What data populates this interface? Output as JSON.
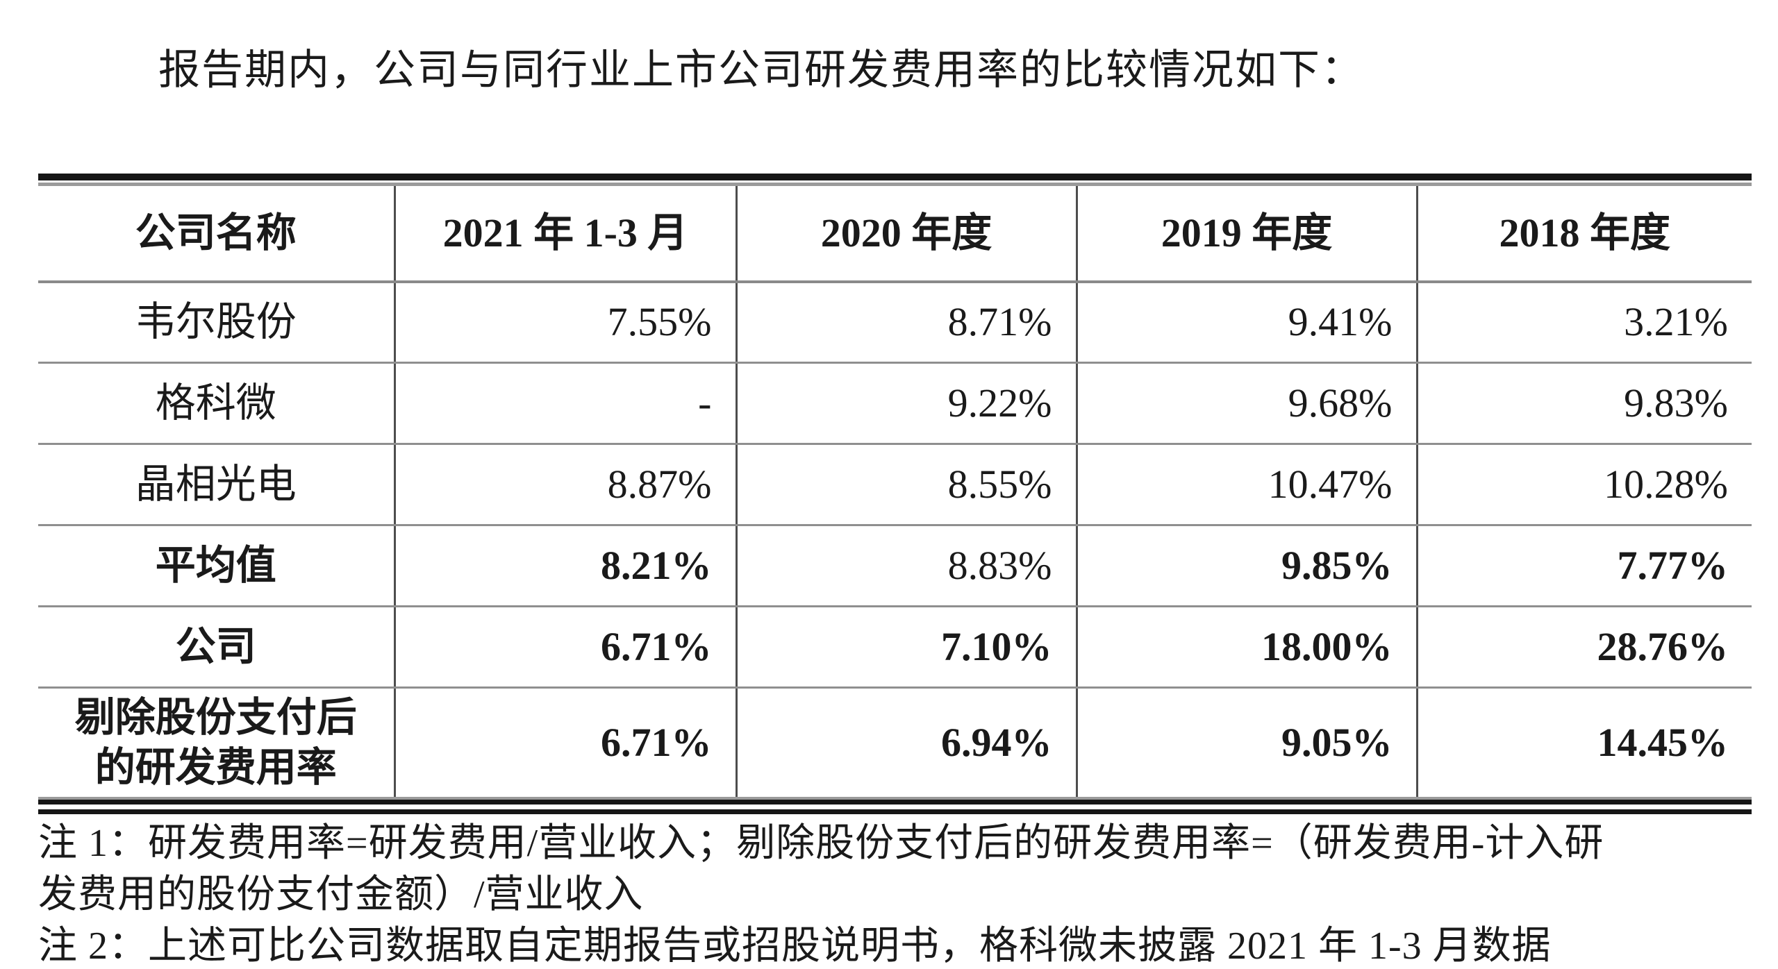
{
  "document": {
    "intro": "报告期内，公司与同行业上市公司研发费用率的比较情况如下：",
    "table": {
      "columns": [
        "公司名称",
        "2021 年 1-3 月",
        "2020 年度",
        "2019 年度",
        "2018 年度"
      ],
      "rows": [
        {
          "name": "韦尔股份",
          "values": [
            "7.55%",
            "8.71%",
            "9.41%",
            "3.21%"
          ]
        },
        {
          "name": "格科微",
          "values": [
            "-",
            "9.22%",
            "9.68%",
            "9.83%"
          ]
        },
        {
          "name": "晶相光电",
          "values": [
            "8.87%",
            "8.55%",
            "10.47%",
            "10.28%"
          ]
        },
        {
          "name": "平均值",
          "values": [
            "8.21%",
            "8.83%",
            "9.85%",
            "7.77%"
          ]
        },
        {
          "name": "公司",
          "values": [
            "6.71%",
            "7.10%",
            "18.00%",
            "28.76%"
          ]
        },
        {
          "name": "剔除股份支付后的研发费用率",
          "values": [
            "6.71%",
            "6.94%",
            "9.05%",
            "14.45%"
          ]
        }
      ]
    },
    "notes": {
      "note1_line1": "注 1：研发费用率=研发费用/营业收入；剔除股份支付后的研发费用率=（研发费用-计入研",
      "note1_line2": "发费用的股份支付金额）/营业收入",
      "note2": "注 2：上述可比公司数据取自定期报告或招股说明书，格科微未披露 2021 年 1-3 月数据"
    }
  }
}
